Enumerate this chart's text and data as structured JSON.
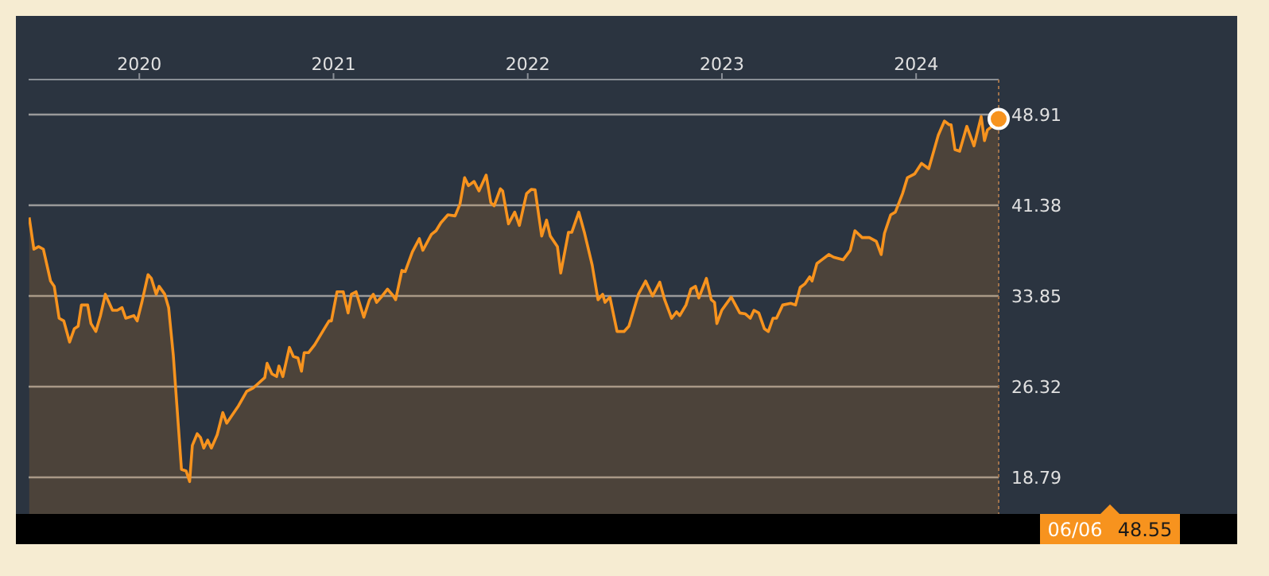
{
  "chart_data": {
    "type": "area",
    "x": [
      2019.433,
      2019.457,
      2019.482,
      2019.506,
      2019.543,
      2019.562,
      2019.587,
      2019.611,
      2019.641,
      2019.665,
      2019.685,
      2019.702,
      2019.734,
      2019.751,
      2019.776,
      2019.8,
      2019.825,
      2019.862,
      2019.886,
      2019.911,
      2019.93,
      2019.972,
      2019.989,
      2020.013,
      2020.045,
      2020.062,
      2020.087,
      2020.102,
      2020.131,
      2020.151,
      2020.175,
      2020.217,
      2020.241,
      2020.259,
      2020.273,
      2020.298,
      2020.315,
      2020.332,
      2020.352,
      2020.371,
      2020.401,
      2020.43,
      2020.45,
      2020.474,
      2020.511,
      2020.553,
      2020.585,
      2020.646,
      2020.658,
      2020.683,
      2020.707,
      2020.719,
      2020.739,
      2020.773,
      2020.793,
      2020.817,
      2020.835,
      2020.849,
      2020.871,
      2020.903,
      2020.952,
      2020.977,
      2020.989,
      2021.018,
      2021.05,
      2021.075,
      2021.092,
      2021.116,
      2021.156,
      2021.185,
      2021.205,
      2021.222,
      2021.246,
      2021.278,
      2021.308,
      2021.32,
      2021.352,
      2021.369,
      2021.406,
      2021.442,
      2021.46,
      2021.504,
      2021.528,
      2021.553,
      2021.589,
      2021.626,
      2021.651,
      2021.675,
      2021.695,
      2021.724,
      2021.749,
      2021.786,
      2021.81,
      2021.827,
      2021.859,
      2021.871,
      2021.901,
      2021.933,
      2021.957,
      2021.994,
      2022.018,
      2022.038,
      2022.072,
      2022.097,
      2022.116,
      2022.153,
      2022.17,
      2022.21,
      2022.227,
      2022.263,
      2022.293,
      2022.332,
      2022.362,
      2022.386,
      2022.398,
      2022.423,
      2022.46,
      2022.496,
      2022.521,
      2022.57,
      2022.607,
      2022.643,
      2022.68,
      2022.705,
      2022.741,
      2022.766,
      2022.783,
      2022.815,
      2022.84,
      2022.864,
      2022.881,
      2022.92,
      2022.945,
      2022.962,
      2022.974,
      2022.999,
      2023.048,
      2023.092,
      2023.121,
      2023.146,
      2023.165,
      2023.19,
      2023.219,
      2023.239,
      2023.263,
      2023.281,
      2023.313,
      2023.354,
      2023.379,
      2023.403,
      2023.428,
      2023.452,
      2023.464,
      2023.489,
      2023.514,
      2023.55,
      2023.575,
      2023.624,
      2023.661,
      2023.685,
      2023.722,
      2023.759,
      2023.795,
      2023.82,
      2023.837,
      2023.869,
      2023.893,
      2023.93,
      2023.955,
      2023.992,
      2024.028,
      2024.065,
      2024.114,
      2024.146,
      2024.17,
      2024.18,
      2024.2,
      2024.224,
      2024.261,
      2024.298,
      2024.335,
      2024.352,
      2024.367,
      2024.384,
      2024.425
    ],
    "values": [
      40.37,
      37.73,
      37.95,
      37.73,
      35.09,
      34.65,
      32.0,
      31.78,
      30.02,
      31.12,
      31.34,
      33.1,
      33.1,
      31.56,
      30.9,
      32.22,
      33.99,
      32.66,
      32.66,
      32.88,
      32.0,
      32.22,
      31.78,
      33.32,
      35.62,
      35.31,
      33.99,
      34.65,
      33.99,
      32.88,
      28.92,
      19.45,
      19.32,
      18.44,
      21.44,
      22.41,
      22.1,
      21.22,
      21.88,
      21.22,
      22.32,
      24.17,
      23.29,
      23.86,
      24.74,
      25.93,
      26.19,
      27.07,
      28.26,
      27.38,
      27.16,
      28.04,
      27.16,
      29.58,
      28.83,
      28.7,
      27.6,
      29.14,
      29.14,
      29.8,
      31.12,
      31.78,
      31.78,
      34.2,
      34.2,
      32.44,
      33.99,
      34.2,
      32.09,
      33.54,
      33.99,
      33.32,
      33.76,
      34.42,
      33.85,
      33.54,
      35.97,
      35.88,
      37.51,
      38.61,
      37.64,
      38.96,
      39.27,
      39.93,
      40.59,
      40.5,
      41.47,
      43.67,
      43.01,
      43.36,
      42.57,
      43.89,
      41.6,
      41.34,
      42.75,
      42.57,
      39.84,
      40.81,
      39.71,
      42.35,
      42.7,
      42.66,
      38.83,
      40.15,
      38.83,
      37.95,
      35.75,
      39.14,
      39.14,
      40.81,
      39.05,
      36.41,
      33.54,
      33.99,
      33.32,
      33.76,
      30.9,
      30.9,
      31.34,
      33.99,
      35.09,
      33.85,
      35.0,
      33.54,
      32.0,
      32.53,
      32.22,
      33.1,
      34.42,
      34.65,
      33.68,
      35.31,
      33.54,
      33.32,
      31.56,
      32.66,
      33.76,
      32.44,
      32.36,
      32.0,
      32.66,
      32.44,
      31.12,
      30.9,
      32.0,
      32.0,
      33.1,
      33.24,
      33.1,
      34.56,
      34.87,
      35.44,
      35.09,
      36.54,
      36.85,
      37.29,
      37.07,
      36.85,
      37.64,
      39.27,
      38.7,
      38.7,
      38.39,
      37.29,
      39.05,
      40.59,
      40.81,
      42.35,
      43.67,
      43.98,
      44.86,
      44.42,
      47.19,
      48.38,
      48.07,
      48.07,
      46.01,
      45.87,
      47.94,
      46.31,
      48.74,
      46.75,
      47.63,
      47.85,
      48.55
    ],
    "color": "#f7931e",
    "xlim": [
      2019.43,
      2024.425
    ],
    "xticks": [
      2020,
      2021,
      2022,
      2023,
      2024
    ],
    "ylim": [
      15.75,
      51.82
    ],
    "yticks": [
      18.79,
      26.32,
      33.85,
      41.38,
      48.91
    ],
    "grid": "y",
    "annotations": [
      "06/06",
      "48.55"
    ]
  }
}
